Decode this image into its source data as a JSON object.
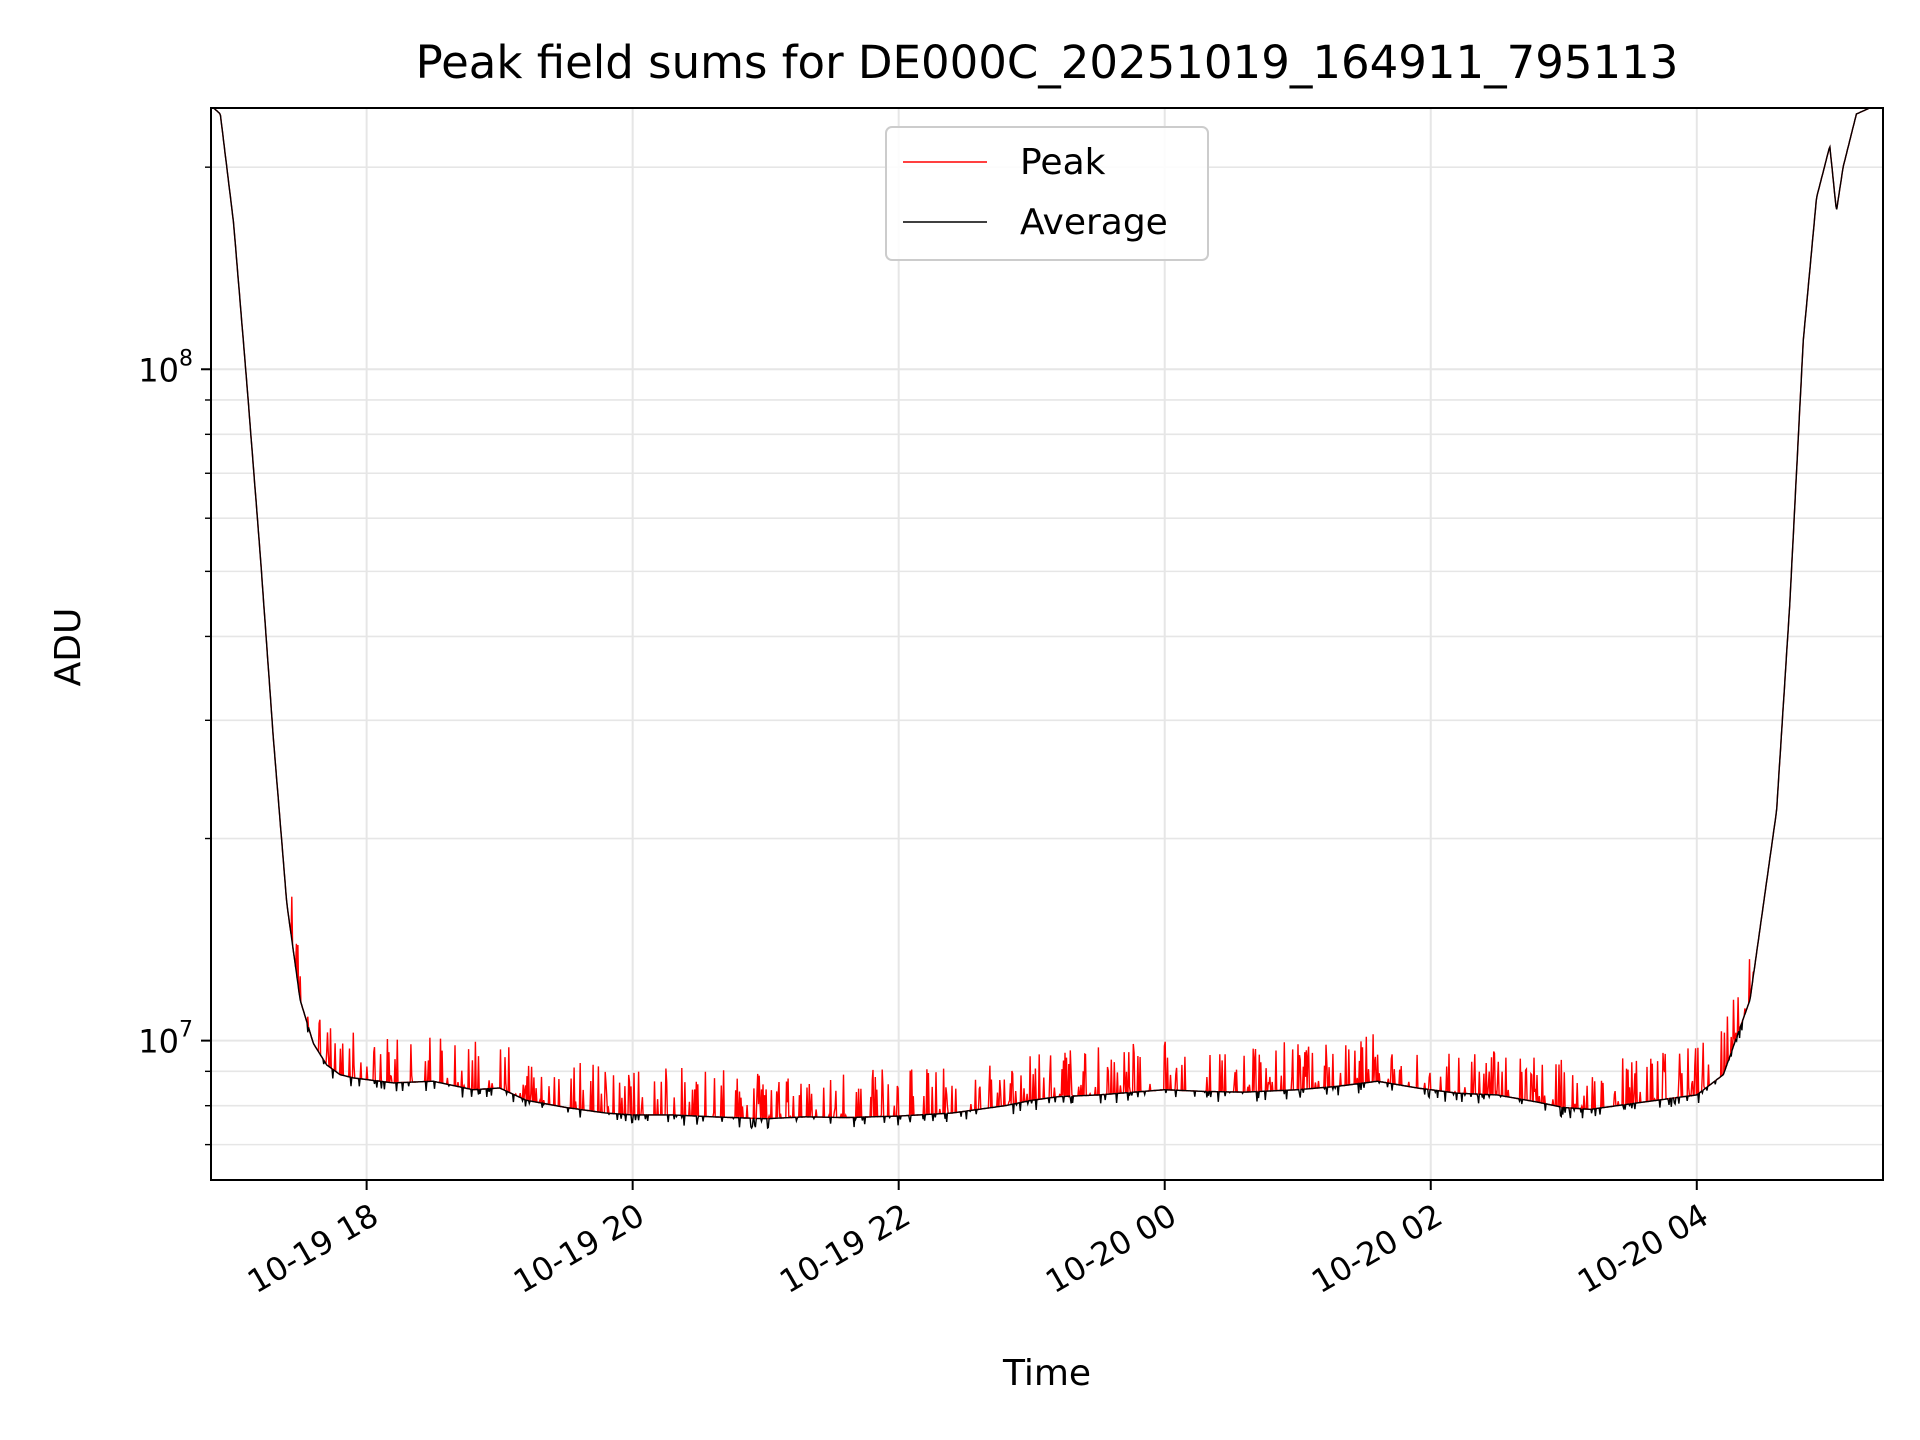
{
  "chart_data": {
    "type": "line",
    "title": "Peak field sums for DE000C_20251019_164911_795113",
    "xlabel": "Time",
    "ylabel": "ADU",
    "yscale": "log",
    "ylim": [
      6200000,
      245000000
    ],
    "xlim_hours": [
      -1.17,
      11.4
    ],
    "x_unit": "hours relative to 10-19 18:00",
    "grid": true,
    "legend_location": "top-center",
    "x_ticks": [
      {
        "hour": 0,
        "label": "10-19 18"
      },
      {
        "hour": 2,
        "label": "10-19 20"
      },
      {
        "hour": 4,
        "label": "10-19 22"
      },
      {
        "hour": 6,
        "label": "10-20 00"
      },
      {
        "hour": 8,
        "label": "10-20 02"
      },
      {
        "hour": 10,
        "label": "10-20 04"
      }
    ],
    "y_major_ticks": [
      {
        "value": 10000000,
        "base": "10",
        "exp": "7"
      },
      {
        "value": 100000000,
        "base": "10",
        "exp": "8"
      }
    ],
    "series": [
      {
        "name": "Peak",
        "color": "#ff0000",
        "spike_fraction_max": 0.18,
        "x": [
          -1.15,
          -1.1,
          -1.0,
          -0.9,
          -0.8,
          -0.7,
          -0.6,
          -0.5,
          -0.4,
          -0.3,
          -0.2,
          -0.1,
          0.0,
          0.2,
          0.5,
          0.8,
          1.0,
          1.2,
          1.5,
          1.8,
          2.0,
          2.3,
          2.6,
          3.0,
          3.3,
          3.6,
          4.0,
          4.4,
          4.8,
          5.0,
          5.2,
          5.5,
          6.0,
          6.3,
          6.6,
          7.0,
          7.3,
          7.6,
          7.9,
          8.2,
          8.5,
          8.8,
          9.0,
          9.2,
          9.5,
          9.8,
          10.0,
          10.2,
          10.4,
          10.6,
          10.7,
          10.8,
          10.9,
          11.0,
          11.05,
          11.1,
          11.2,
          11.3,
          11.4
        ],
        "y": [
          245000000,
          240000000,
          165000000,
          95000000,
          53000000,
          28000000,
          16000000,
          11500000,
          9900000,
          9200000,
          8900000,
          8800000,
          8750000,
          8650000,
          8700000,
          8450000,
          8500000,
          8150000,
          7950000,
          7800000,
          7750000,
          7750000,
          7700000,
          7650000,
          7700000,
          7680000,
          7720000,
          7800000,
          8000000,
          8150000,
          8250000,
          8300000,
          8450000,
          8400000,
          8380000,
          8450000,
          8550000,
          8700000,
          8500000,
          8350000,
          8300000,
          8100000,
          7950000,
          7900000,
          8050000,
          8200000,
          8300000,
          8900000,
          11500000,
          22000000,
          45000000,
          110000000,
          180000000,
          215000000,
          172000000,
          200000000,
          240000000,
          245000000,
          245000000
        ]
      },
      {
        "name": "Average",
        "color": "#000000",
        "x": [
          -1.15,
          -1.1,
          -1.0,
          -0.9,
          -0.8,
          -0.7,
          -0.6,
          -0.5,
          -0.4,
          -0.3,
          -0.2,
          -0.1,
          0.0,
          0.2,
          0.5,
          0.8,
          1.0,
          1.2,
          1.5,
          1.8,
          2.0,
          2.3,
          2.6,
          3.0,
          3.3,
          3.6,
          4.0,
          4.4,
          4.8,
          5.0,
          5.2,
          5.5,
          6.0,
          6.3,
          6.6,
          7.0,
          7.3,
          7.6,
          7.9,
          8.2,
          8.5,
          8.8,
          9.0,
          9.2,
          9.5,
          9.8,
          10.0,
          10.2,
          10.4,
          10.6,
          10.7,
          10.8,
          10.9,
          11.0,
          11.05,
          11.1,
          11.2,
          11.3,
          11.4
        ],
        "y": [
          245000000,
          240000000,
          165000000,
          95000000,
          53000000,
          28000000,
          16000000,
          11500000,
          9900000,
          9200000,
          8900000,
          8800000,
          8750000,
          8650000,
          8700000,
          8450000,
          8500000,
          8150000,
          7950000,
          7800000,
          7750000,
          7750000,
          7700000,
          7650000,
          7700000,
          7680000,
          7720000,
          7800000,
          8000000,
          8150000,
          8250000,
          8300000,
          8450000,
          8400000,
          8380000,
          8450000,
          8550000,
          8700000,
          8500000,
          8350000,
          8300000,
          8100000,
          7950000,
          7900000,
          8050000,
          8200000,
          8300000,
          8900000,
          11500000,
          22000000,
          45000000,
          110000000,
          180000000,
          215000000,
          172000000,
          200000000,
          240000000,
          245000000,
          245000000
        ]
      }
    ]
  }
}
